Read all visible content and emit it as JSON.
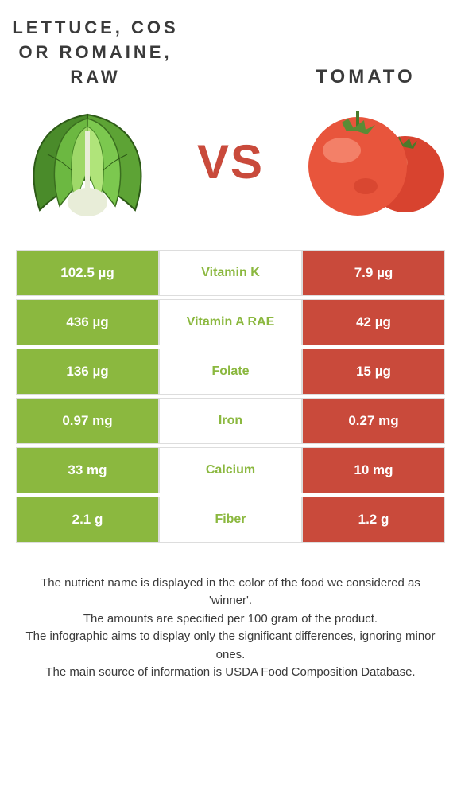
{
  "left_food": {
    "title": "LETTUCE, COS OR ROMAINE, RAW",
    "color": "#8bb83f",
    "text_color": "#ffffff"
  },
  "right_food": {
    "title": "TOMATO",
    "color": "#c94a3b",
    "text_color": "#ffffff"
  },
  "vs_label": "VS",
  "nutrients": [
    {
      "name": "Vitamin K",
      "left": "102.5 µg",
      "right": "7.9 µg",
      "winner": "left"
    },
    {
      "name": "Vitamin A RAE",
      "left": "436 µg",
      "right": "42 µg",
      "winner": "left"
    },
    {
      "name": "Folate",
      "left": "136 µg",
      "right": "15 µg",
      "winner": "left"
    },
    {
      "name": "Iron",
      "left": "0.97 mg",
      "right": "0.27 mg",
      "winner": "left"
    },
    {
      "name": "Calcium",
      "left": "33 mg",
      "right": "10 mg",
      "winner": "left"
    },
    {
      "name": "Fiber",
      "left": "2.1 g",
      "right": "1.2 g",
      "winner": "left"
    }
  ],
  "mid_background": "#ffffff",
  "border_color": "#dddddd",
  "notes": [
    "The nutrient name is displayed in the color of the food we considered as 'winner'.",
    "The amounts are specified per 100 gram of the product.",
    "The infographic aims to display only the significant differences, ignoring minor ones.",
    "The main source of information is USDA Food Composition Database."
  ]
}
